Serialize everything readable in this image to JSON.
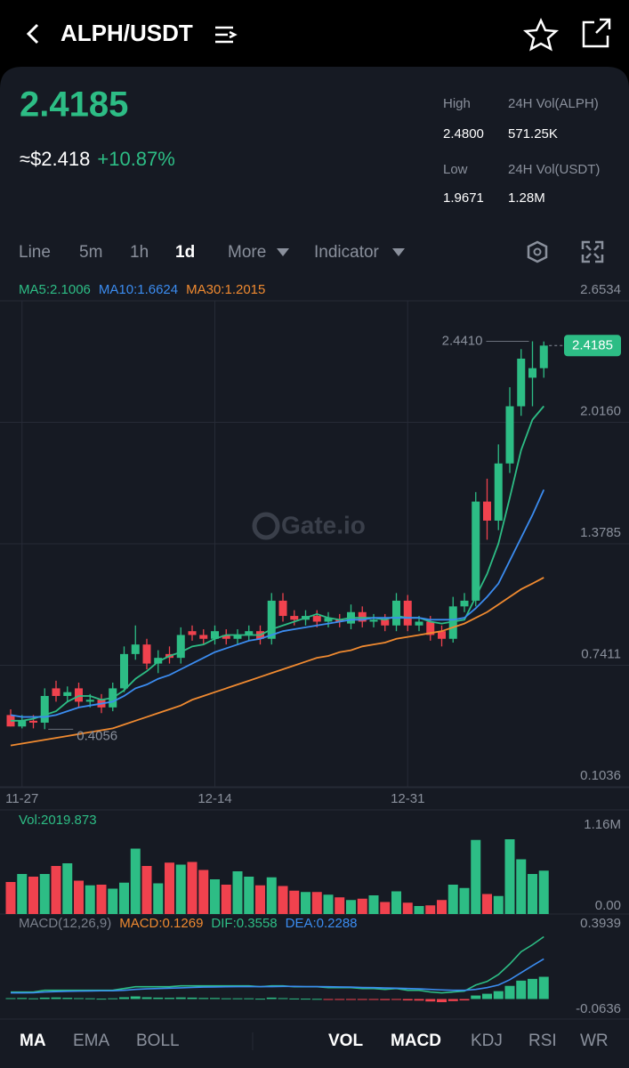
{
  "header": {
    "pair": "ALPH/USDT"
  },
  "ticker": {
    "price": "2.4185",
    "usd_price": "≈$2.418",
    "change": "+10.87%",
    "stats": [
      {
        "label": "High",
        "value": "2.4800"
      },
      {
        "label": "24H Vol(ALPH)",
        "value": "571.25K"
      },
      {
        "label": "Low",
        "value": "1.9671"
      },
      {
        "label": "24H Vol(USDT)",
        "value": "1.28M"
      }
    ]
  },
  "tabs": {
    "intervals": [
      "Line",
      "5m",
      "1h",
      "1d",
      "More"
    ],
    "active_index": 3,
    "indicator": "Indicator"
  },
  "chart_data": [
    {
      "type": "candlestick",
      "up_color": "#2dbd85",
      "down_color": "#f0424e",
      "grid": true,
      "categories": [
        null,
        "11-27",
        null,
        null,
        null,
        null,
        null,
        null,
        null,
        null,
        null,
        null,
        null,
        null,
        null,
        null,
        null,
        null,
        "12-14",
        null,
        null,
        null,
        null,
        null,
        null,
        null,
        null,
        null,
        null,
        null,
        null,
        null,
        null,
        null,
        null,
        "12-31",
        null,
        null,
        null,
        null,
        null,
        null,
        null,
        null,
        null,
        null,
        null,
        null
      ],
      "open": [
        0.48,
        0.42,
        0.45,
        0.44,
        0.62,
        0.58,
        0.62,
        0.55,
        0.56,
        0.52,
        0.62,
        0.8,
        0.85,
        0.75,
        0.8,
        0.78,
        0.92,
        0.9,
        0.88,
        0.9,
        0.88,
        0.9,
        0.92,
        0.88,
        1.08,
        1.0,
        0.98,
        1.0,
        0.97,
        0.98,
        0.96,
        1.02,
        0.97,
        0.98,
        0.95,
        1.08,
        0.95,
        0.97,
        0.92,
        0.88,
        1.05,
        1.08,
        1.6,
        1.5,
        1.8,
        2.1,
        2.25,
        2.3
      ],
      "high": [
        0.51,
        0.48,
        0.48,
        0.62,
        0.66,
        0.63,
        0.65,
        0.59,
        0.59,
        0.65,
        0.84,
        0.95,
        0.88,
        0.82,
        0.84,
        0.94,
        0.95,
        0.93,
        0.95,
        0.93,
        0.93,
        0.95,
        0.95,
        1.12,
        1.12,
        1.03,
        1.03,
        1.03,
        1.02,
        1.01,
        1.06,
        1.05,
        1.01,
        1.01,
        1.12,
        1.11,
        1.0,
        1.0,
        0.95,
        1.1,
        1.12,
        1.65,
        1.72,
        1.9,
        2.2,
        2.4,
        2.441,
        2.44
      ],
      "low": [
        0.42,
        0.41,
        0.41,
        0.4056,
        0.55,
        0.55,
        0.52,
        0.52,
        0.49,
        0.5,
        0.6,
        0.77,
        0.72,
        0.7,
        0.75,
        0.75,
        0.87,
        0.85,
        0.85,
        0.85,
        0.85,
        0.87,
        0.85,
        0.85,
        0.97,
        0.95,
        0.95,
        0.94,
        0.94,
        0.94,
        0.93,
        0.94,
        0.94,
        0.92,
        0.92,
        0.92,
        0.92,
        0.87,
        0.84,
        0.86,
        1.02,
        1.05,
        1.4,
        1.45,
        1.75,
        2.05,
        2.1,
        2.25
      ],
      "close": [
        0.42,
        0.45,
        0.44,
        0.58,
        0.58,
        0.6,
        0.55,
        0.56,
        0.52,
        0.62,
        0.8,
        0.85,
        0.75,
        0.78,
        0.78,
        0.9,
        0.9,
        0.88,
        0.92,
        0.88,
        0.9,
        0.92,
        0.88,
        1.08,
        1.0,
        0.98,
        1.0,
        0.97,
        0.99,
        0.97,
        1.02,
        0.97,
        0.98,
        0.95,
        1.08,
        0.95,
        0.97,
        0.9,
        0.88,
        1.05,
        1.08,
        1.6,
        1.5,
        1.8,
        2.1,
        2.35,
        2.3,
        2.4185
      ],
      "series": [
        {
          "label": "MA5:2.1006",
          "color": "#2dbd85",
          "values": [
            0.45,
            0.45,
            0.46,
            0.48,
            0.5,
            0.55,
            0.58,
            0.58,
            0.56,
            0.57,
            0.61,
            0.67,
            0.71,
            0.76,
            0.79,
            0.81,
            0.84,
            0.85,
            0.88,
            0.9,
            0.9,
            0.9,
            0.9,
            0.93,
            0.95,
            0.97,
            0.99,
            1.01,
            0.99,
            0.98,
            0.99,
            0.99,
            0.99,
            0.98,
            1.0,
            0.99,
            0.99,
            0.97,
            0.96,
            0.97,
            0.98,
            1.1,
            1.22,
            1.38,
            1.62,
            1.87,
            2.03,
            2.1006
          ]
        },
        {
          "label": "MA10:1.6624",
          "color": "#3b8cf0",
          "values": [
            0.48,
            0.47,
            0.47,
            0.47,
            0.48,
            0.5,
            0.52,
            0.53,
            0.54,
            0.55,
            0.58,
            0.62,
            0.64,
            0.67,
            0.69,
            0.72,
            0.75,
            0.78,
            0.81,
            0.83,
            0.85,
            0.87,
            0.88,
            0.9,
            0.92,
            0.93,
            0.94,
            0.95,
            0.96,
            0.97,
            0.98,
            0.98,
            0.99,
            0.99,
            0.99,
            0.99,
            0.99,
            0.98,
            0.98,
            0.98,
            0.99,
            1.04,
            1.1,
            1.17,
            1.29,
            1.41,
            1.53,
            1.6624
          ]
        },
        {
          "label": "MA30:1.2015",
          "color": "#f08a30",
          "values": [
            0.32,
            0.33,
            0.34,
            0.35,
            0.36,
            0.37,
            0.38,
            0.39,
            0.4,
            0.41,
            0.43,
            0.45,
            0.47,
            0.49,
            0.51,
            0.53,
            0.56,
            0.58,
            0.6,
            0.62,
            0.64,
            0.66,
            0.68,
            0.7,
            0.72,
            0.74,
            0.76,
            0.78,
            0.79,
            0.81,
            0.82,
            0.84,
            0.85,
            0.86,
            0.88,
            0.89,
            0.9,
            0.91,
            0.92,
            0.94,
            0.96,
            0.99,
            1.02,
            1.06,
            1.1,
            1.14,
            1.17,
            1.2015
          ]
        }
      ],
      "ylim": [
        0.1036,
        2.6534
      ],
      "yticks": [
        2.6534,
        {
          "value": 2.016,
          "label": "2.0160"
        },
        1.3785,
        0.7411,
        0.1036
      ],
      "max_marker": {
        "value": 2.441,
        "label": "2.4410"
      },
      "min_marker": {
        "value": 0.4056,
        "label": "0.4056"
      },
      "last_price": {
        "value": 2.4185,
        "label": "2.4185"
      },
      "watermark": "Gate.io"
    },
    {
      "type": "bar",
      "legend": "Vol:2019.873",
      "legend_color": "#2dbd85",
      "values": [
        480000,
        600000,
        560000,
        600000,
        720000,
        760000,
        500000,
        430000,
        440000,
        380000,
        470000,
        980000,
        720000,
        460000,
        770000,
        740000,
        780000,
        660000,
        520000,
        440000,
        640000,
        560000,
        430000,
        550000,
        420000,
        350000,
        330000,
        330000,
        290000,
        250000,
        210000,
        230000,
        280000,
        180000,
        340000,
        170000,
        120000,
        130000,
        210000,
        440000,
        390000,
        1110000,
        300000,
        270000,
        1120000,
        820000,
        600000,
        650000
      ],
      "ylim": [
        0,
        1160000
      ],
      "yticks": [
        {
          "value": 1160000,
          "label": "1.16M"
        },
        {
          "value": 0,
          "label": "0.00"
        }
      ]
    },
    {
      "type": "macd",
      "legend": [
        {
          "text": "MACD(12,26,9)",
          "color": "#7a808c"
        },
        {
          "text": "MACD:0.1269",
          "color": "#f08a30"
        },
        {
          "text": "DIF:0.3558",
          "color": "#2dbd85"
        },
        {
          "text": "DEA:0.2288",
          "color": "#3b8cf0"
        }
      ],
      "histogram": [
        0.005,
        0.006,
        0.004,
        0.008,
        0.009,
        0.007,
        0.005,
        0.004,
        0.002,
        0.004,
        0.01,
        0.015,
        0.01,
        0.008,
        0.007,
        0.009,
        0.008,
        0.006,
        0.006,
        0.004,
        0.004,
        0.004,
        0.002,
        0.008,
        0.005,
        0.003,
        0.002,
        0.001,
        -0.001,
        -0.002,
        -0.002,
        -0.004,
        -0.004,
        -0.006,
        -0.003,
        -0.008,
        -0.009,
        -0.014,
        -0.018,
        -0.012,
        -0.008,
        0.02,
        0.03,
        0.045,
        0.075,
        0.105,
        0.115,
        0.1269
      ],
      "dif": {
        "color": "#2dbd85",
        "values": [
          0.04,
          0.04,
          0.04,
          0.05,
          0.05,
          0.05,
          0.05,
          0.05,
          0.05,
          0.05,
          0.06,
          0.07,
          0.07,
          0.07,
          0.07,
          0.075,
          0.075,
          0.075,
          0.075,
          0.075,
          0.075,
          0.075,
          0.07,
          0.075,
          0.075,
          0.07,
          0.07,
          0.07,
          0.065,
          0.065,
          0.065,
          0.06,
          0.06,
          0.055,
          0.06,
          0.05,
          0.05,
          0.04,
          0.035,
          0.04,
          0.045,
          0.08,
          0.1,
          0.14,
          0.2,
          0.27,
          0.31,
          0.3558
        ]
      },
      "dea": {
        "color": "#3b8cf0",
        "values": [
          0.035,
          0.035,
          0.036,
          0.04,
          0.042,
          0.044,
          0.045,
          0.046,
          0.047,
          0.047,
          0.05,
          0.055,
          0.058,
          0.06,
          0.062,
          0.064,
          0.066,
          0.068,
          0.069,
          0.07,
          0.071,
          0.071,
          0.071,
          0.071,
          0.072,
          0.072,
          0.071,
          0.071,
          0.07,
          0.069,
          0.068,
          0.066,
          0.065,
          0.063,
          0.062,
          0.06,
          0.058,
          0.055,
          0.052,
          0.05,
          0.05,
          0.055,
          0.065,
          0.08,
          0.11,
          0.15,
          0.19,
          0.2288
        ]
      },
      "ylim": [
        -0.0636,
        0.3939
      ],
      "yticks": [
        0.3939,
        -0.0636
      ]
    }
  ],
  "bottom_tabs": {
    "main": [
      "MA",
      "EMA",
      "BOLL"
    ],
    "main_active": [
      0
    ],
    "sub": [
      "VOL",
      "MACD",
      "KDJ",
      "RSI",
      "WR"
    ],
    "sub_active": [
      0,
      1
    ]
  }
}
